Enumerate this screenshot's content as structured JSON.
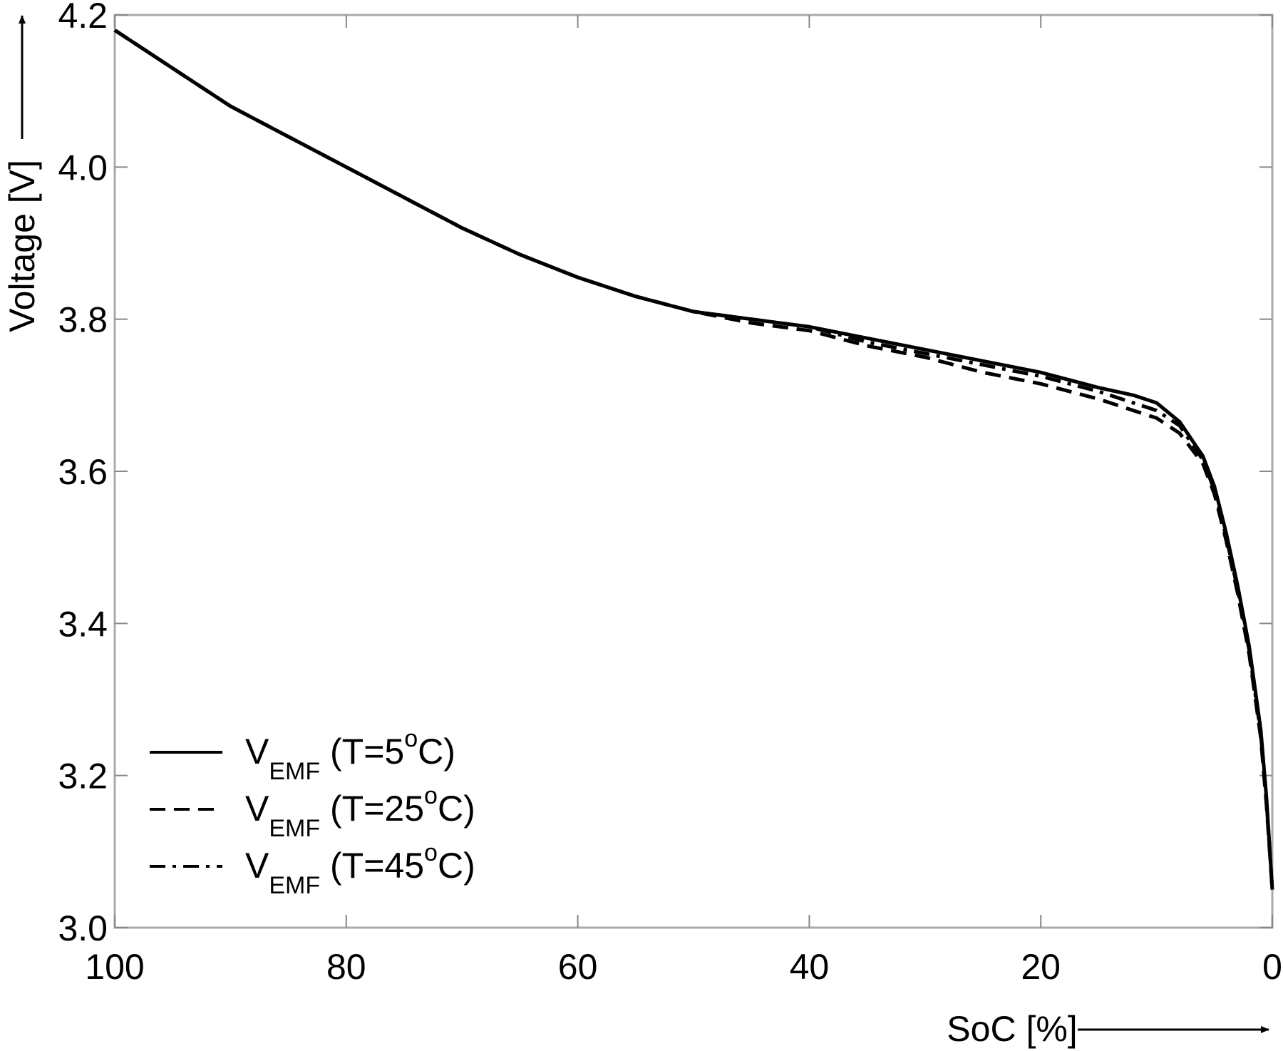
{
  "chart_data": {
    "type": "line",
    "x_label": "SoC [%]",
    "y_label": "Voltage [V]",
    "xlim": [
      100,
      0
    ],
    "xticks": [
      100,
      80,
      60,
      40,
      20,
      0
    ],
    "ylim": [
      3.0,
      4.2
    ],
    "yticks": [
      {
        "value": 3.0,
        "label": "3.0"
      },
      3.2,
      3.4,
      3.6,
      3.8,
      {
        "value": 4.0,
        "label": "4.0"
      },
      4.2
    ],
    "grid": false,
    "legend": "lower left",
    "x": [
      100,
      95,
      90,
      85,
      80,
      75,
      70,
      65,
      60,
      55,
      50,
      45,
      40,
      35,
      30,
      25,
      20,
      15,
      12,
      10,
      8,
      6,
      5,
      4,
      3,
      2,
      1,
      0.5,
      0
    ],
    "series": [
      {
        "name": [
          "V",
          "EMF",
          " (T=5",
          "o",
          "C)"
        ],
        "color": "#000000",
        "style": "solid",
        "values": [
          4.18,
          4.13,
          4.08,
          4.04,
          4.0,
          3.96,
          3.92,
          3.885,
          3.855,
          3.83,
          3.81,
          3.8,
          3.79,
          3.775,
          3.76,
          3.745,
          3.73,
          3.71,
          3.7,
          3.69,
          3.665,
          3.62,
          3.58,
          3.52,
          3.45,
          3.37,
          3.26,
          3.17,
          3.05
        ]
      },
      {
        "name": [
          "V",
          "EMF",
          " (T=25",
          "o",
          "C)"
        ],
        "color": "#000000",
        "style": "dashed",
        "values": [
          4.18,
          4.13,
          4.08,
          4.04,
          4.0,
          3.96,
          3.92,
          3.885,
          3.855,
          3.83,
          3.81,
          3.795,
          3.785,
          3.765,
          3.75,
          3.73,
          3.715,
          3.695,
          3.68,
          3.67,
          3.65,
          3.61,
          3.57,
          3.51,
          3.44,
          3.36,
          3.25,
          3.16,
          3.05
        ]
      },
      {
        "name": [
          "V",
          "EMF",
          " (T=45",
          "o",
          "C)"
        ],
        "color": "#000000",
        "style": "dashdot",
        "values": [
          4.18,
          4.13,
          4.08,
          4.04,
          4.0,
          3.96,
          3.92,
          3.885,
          3.855,
          3.83,
          3.81,
          3.8,
          3.79,
          3.77,
          3.755,
          3.74,
          3.725,
          3.705,
          3.69,
          3.68,
          3.66,
          3.615,
          3.575,
          3.515,
          3.445,
          3.365,
          3.255,
          3.165,
          3.05
        ]
      }
    ]
  }
}
